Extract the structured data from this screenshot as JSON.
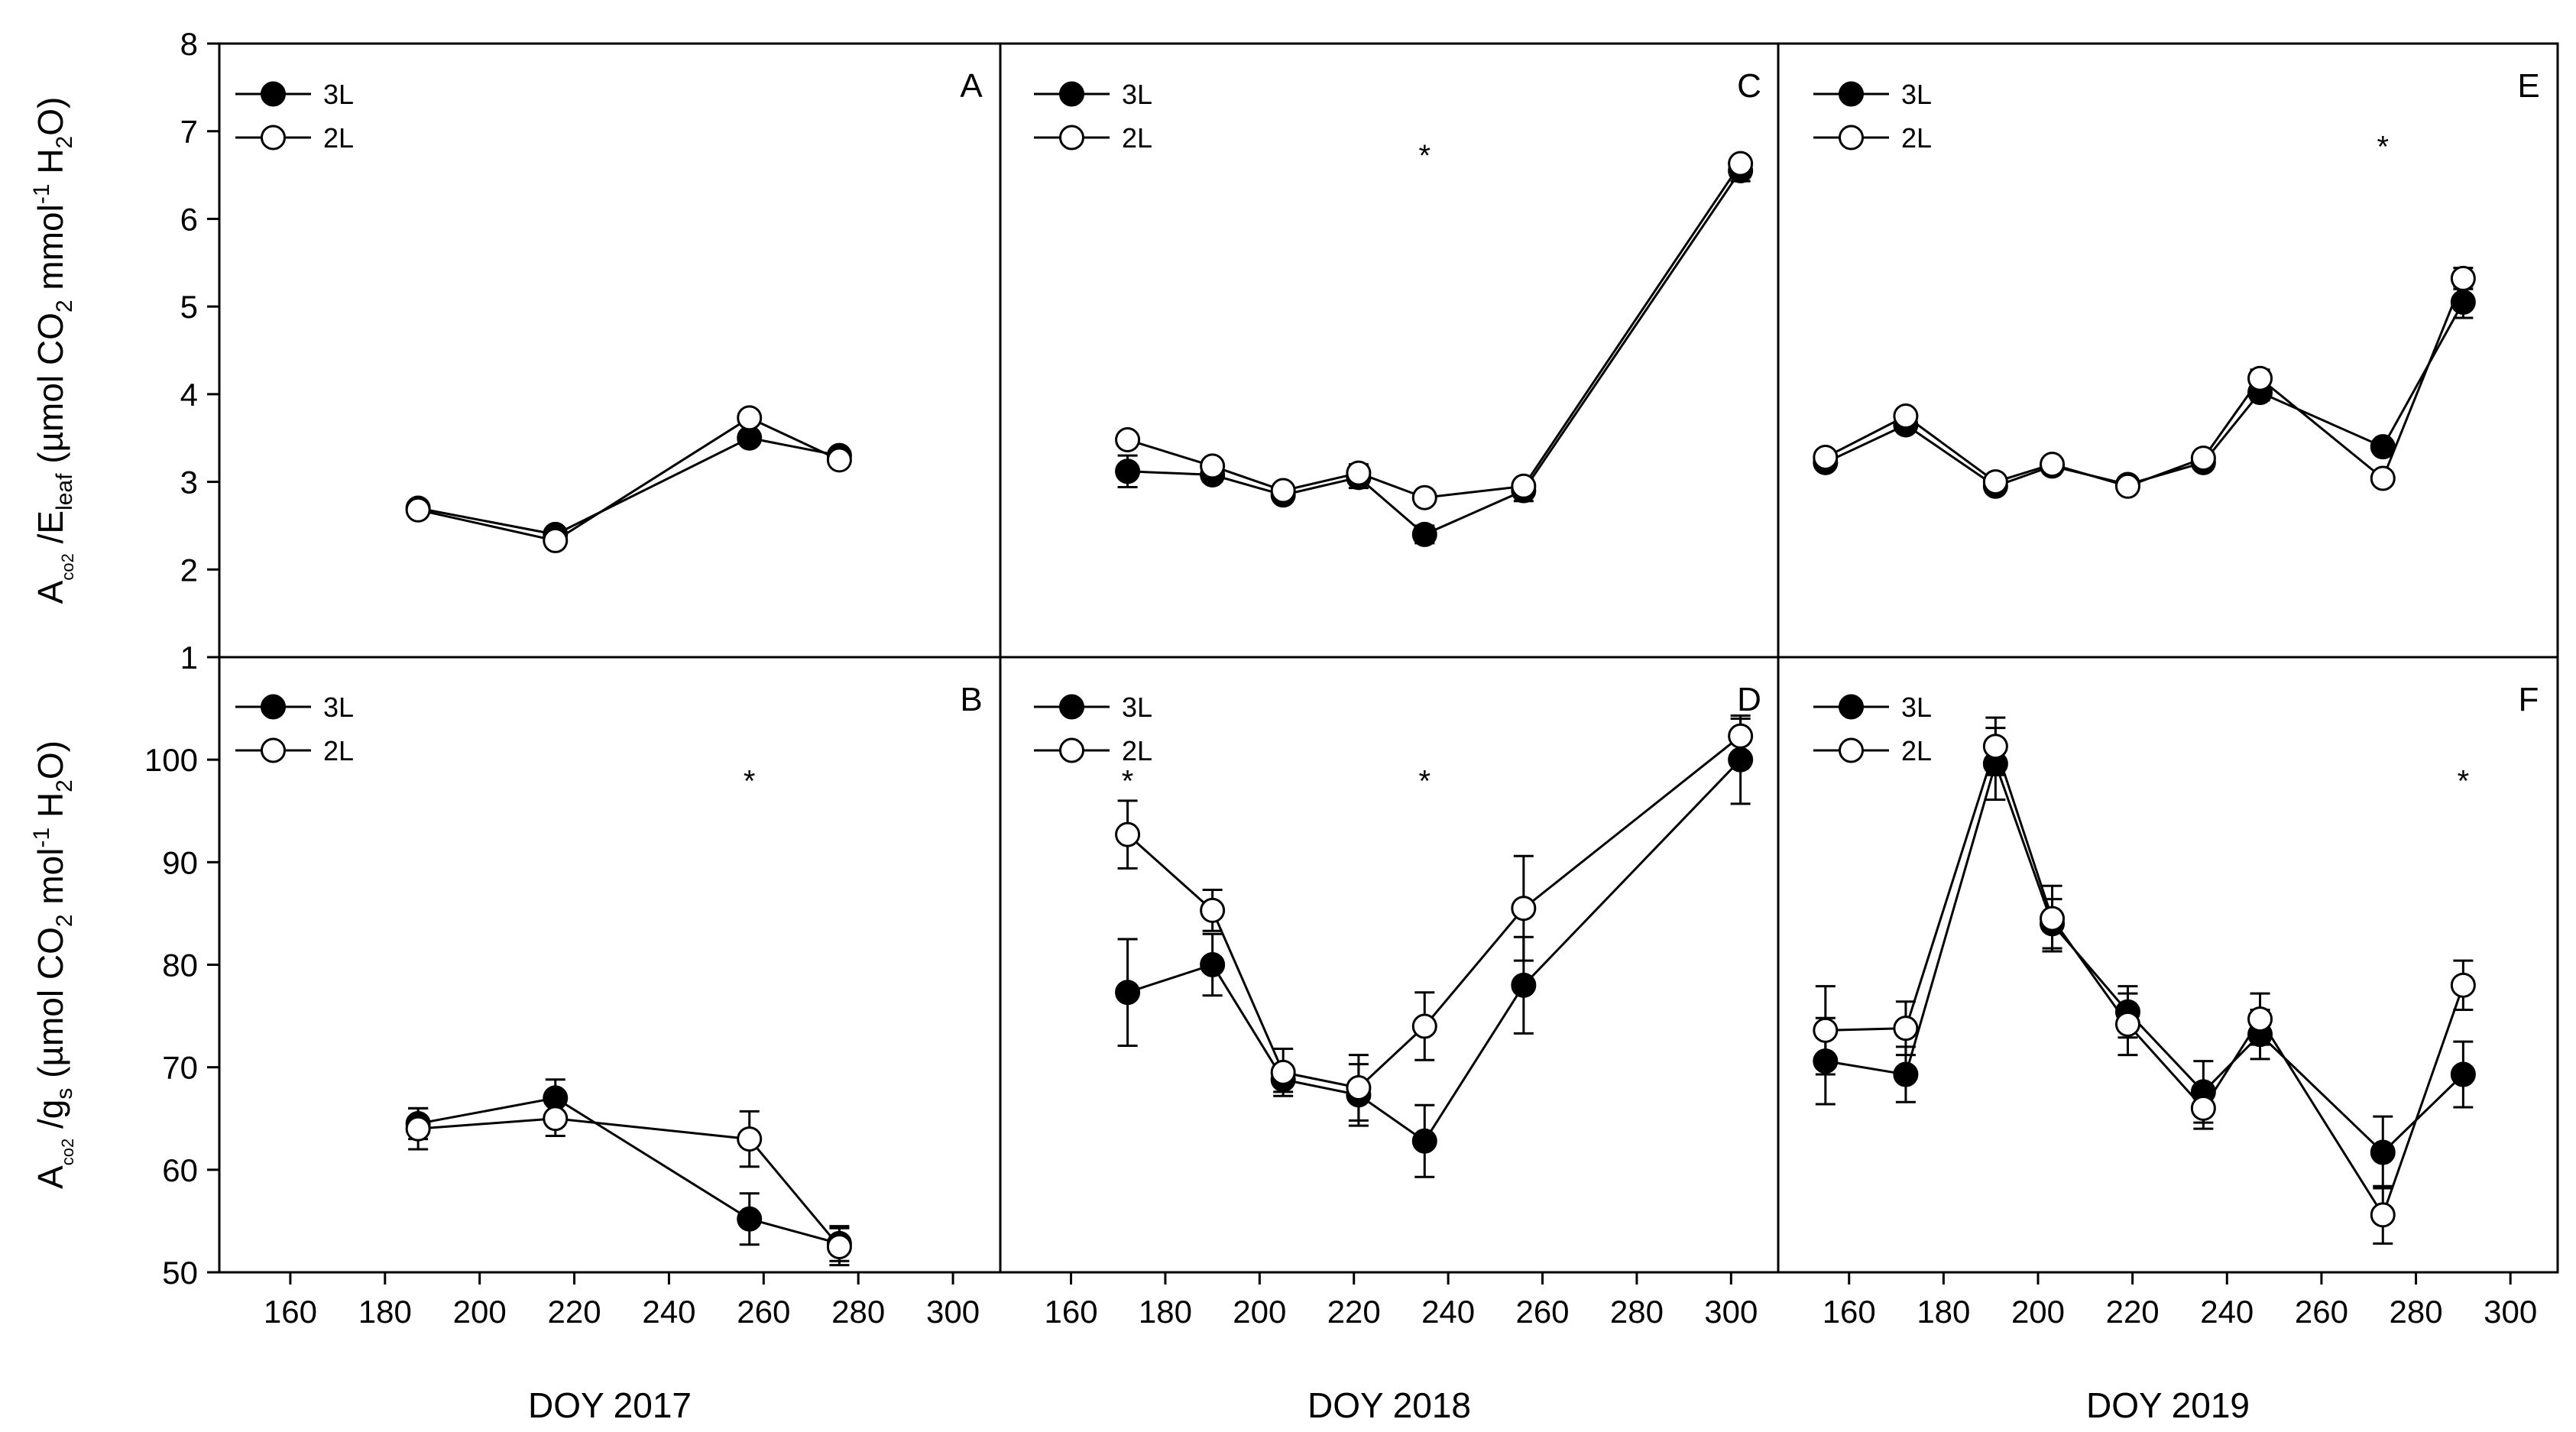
{
  "chart_data": {
    "type": "line",
    "layout": "2 rows x 3 columns, shared axes",
    "y_axis_top": {
      "label": "A_CO2 /E_leaf (µmol CO2 mmol-1 H2O)",
      "label_parts": [
        "A",
        "co",
        "2",
        " /E",
        "leaf",
        " (µmol CO",
        "2",
        "  mmol",
        "-1",
        " H",
        "2",
        "O)"
      ],
      "ylim": [
        1,
        8
      ],
      "ticks": [
        "1",
        "2",
        "3",
        "4",
        "5",
        "6",
        "7",
        "8"
      ]
    },
    "y_axis_bottom": {
      "label": "A_CO2 /g_s (µmol CO2 mol-1 H2O)",
      "label_parts": [
        "A",
        "co",
        "2",
        " /g",
        "s",
        " (µmol CO",
        "2",
        " mol",
        "-1",
        " H",
        "2",
        "O)"
      ],
      "ylim": [
        50,
        110
      ],
      "ticks": [
        "50",
        "60",
        "70",
        "80",
        "90",
        "100"
      ]
    },
    "x_axis": {
      "xlim": [
        145,
        310
      ],
      "ticks": [
        "160",
        "180",
        "200",
        "220",
        "240",
        "260",
        "280",
        "300"
      ],
      "labels": [
        "DOY 2017",
        "DOY 2018",
        "DOY 2019"
      ]
    },
    "legend": {
      "placement": "top-left",
      "entries": [
        "3L",
        "2L"
      ]
    },
    "star_label": "*",
    "panels": [
      {
        "id": "A",
        "row": "top",
        "col": 0,
        "series": [
          {
            "name": "3L",
            "marker": "filled",
            "x": [
              187,
              216,
              257,
              276
            ],
            "y": [
              2.7,
              2.4,
              3.5,
              3.3
            ],
            "err": [
              0.05,
              0.05,
              0.06,
              0.05
            ]
          },
          {
            "name": "2L",
            "marker": "open",
            "x": [
              187,
              216,
              257,
              276
            ],
            "y": [
              2.68,
              2.33,
              3.73,
              3.25
            ],
            "err": [
              0.05,
              0.05,
              0.05,
              0.05
            ]
          }
        ],
        "stars": []
      },
      {
        "id": "B",
        "row": "bottom",
        "col": 0,
        "series": [
          {
            "name": "3L",
            "marker": "filled",
            "x": [
              187,
              216,
              257,
              276
            ],
            "y": [
              64.5,
              67.0,
              55.2,
              52.8
            ],
            "err": [
              1.5,
              1.8,
              2.5,
              1.7
            ]
          },
          {
            "name": "2L",
            "marker": "open",
            "x": [
              187,
              216,
              257,
              276
            ],
            "y": [
              64.0,
              65.0,
              63.0,
              52.5
            ],
            "err": [
              2.0,
              1.7,
              2.7,
              1.8
            ]
          }
        ],
        "stars": [
          {
            "x": 257,
            "y": 99.0
          }
        ]
      },
      {
        "id": "C",
        "row": "top",
        "col": 1,
        "series": [
          {
            "name": "3L",
            "marker": "filled",
            "x": [
              172,
              190,
              205,
              221,
              235,
              256,
              302
            ],
            "y": [
              3.12,
              3.08,
              2.85,
              3.05,
              2.4,
              2.9,
              6.55
            ],
            "err": [
              0.18,
              0.08,
              0.07,
              0.12,
              0.1,
              0.12,
              0.12
            ]
          },
          {
            "name": "2L",
            "marker": "open",
            "x": [
              172,
              190,
              205,
              221,
              235,
              256,
              302
            ],
            "y": [
              3.48,
              3.18,
              2.9,
              3.1,
              2.82,
              2.95,
              6.63
            ],
            "err": [
              0.06,
              0.06,
              0.06,
              0.1,
              0.06,
              0.06,
              0.07
            ]
          }
        ],
        "stars": [
          {
            "x": 235,
            "y": 6.85
          }
        ]
      },
      {
        "id": "D",
        "row": "bottom",
        "col": 1,
        "series": [
          {
            "name": "3L",
            "marker": "filled",
            "x": [
              172,
              190,
              205,
              221,
              235,
              256,
              302
            ],
            "y": [
              77.3,
              80.0,
              68.8,
              67.3,
              62.8,
              78.0,
              100.0
            ],
            "err": [
              5.2,
              3.0,
              1.2,
              3.0,
              3.5,
              4.7,
              4.3
            ]
          },
          {
            "name": "2L",
            "marker": "open",
            "x": [
              172,
              190,
              205,
              221,
              235,
              256,
              302
            ],
            "y": [
              92.7,
              85.3,
              69.5,
              68.0,
              74.0,
              85.5,
              102.3
            ],
            "err": [
              3.3,
              2.0,
              2.3,
              3.2,
              3.3,
              5.1,
              1.7
            ]
          }
        ],
        "stars": [
          {
            "x": 172,
            "y": 99.0
          },
          {
            "x": 235,
            "y": 99.0
          }
        ]
      },
      {
        "id": "E",
        "row": "top",
        "col": 2,
        "series": [
          {
            "name": "3L",
            "marker": "filled",
            "x": [
              155,
              172,
              191,
              203,
              219,
              235,
              247,
              273,
              290
            ],
            "y": [
              3.22,
              3.65,
              2.95,
              3.18,
              2.97,
              3.22,
              4.02,
              3.4,
              5.05
            ],
            "err": [
              0.06,
              0.06,
              0.08,
              0.06,
              0.06,
              0.06,
              0.09,
              0.07,
              0.18
            ]
          },
          {
            "name": "2L",
            "marker": "open",
            "x": [
              155,
              172,
              191,
              203,
              219,
              235,
              247,
              273,
              290
            ],
            "y": [
              3.28,
              3.75,
              3.0,
              3.2,
              2.95,
              3.27,
              4.18,
              3.04,
              5.32
            ],
            "err": [
              0.06,
              0.06,
              0.06,
              0.06,
              0.06,
              0.06,
              0.1,
              0.07,
              0.12
            ]
          }
        ],
        "stars": [
          {
            "x": 273,
            "y": 6.95
          }
        ]
      },
      {
        "id": "F",
        "row": "bottom",
        "col": 2,
        "series": [
          {
            "name": "3L",
            "marker": "filled",
            "x": [
              155,
              172,
              191,
              203,
              219,
              235,
              247,
              273,
              290
            ],
            "y": [
              70.6,
              69.3,
              99.6,
              84.0,
              75.4,
              67.6,
              73.2,
              61.7,
              69.3
            ],
            "err": [
              4.2,
              2.7,
              3.5,
              2.4,
              2.5,
              3.0,
              2.4,
              3.5,
              3.2
            ]
          },
          {
            "name": "2L",
            "marker": "open",
            "x": [
              155,
              172,
              191,
              203,
              219,
              235,
              247,
              273,
              290
            ],
            "y": [
              73.6,
              73.8,
              101.3,
              84.5,
              74.2,
              66.0,
              74.7,
              55.6,
              78.0
            ],
            "err": [
              4.3,
              2.6,
              2.8,
              3.2,
              3.0,
              2.0,
              2.5,
              2.8,
              2.4
            ]
          }
        ],
        "stars": [
          {
            "x": 290,
            "y": 99.0
          }
        ]
      }
    ]
  }
}
